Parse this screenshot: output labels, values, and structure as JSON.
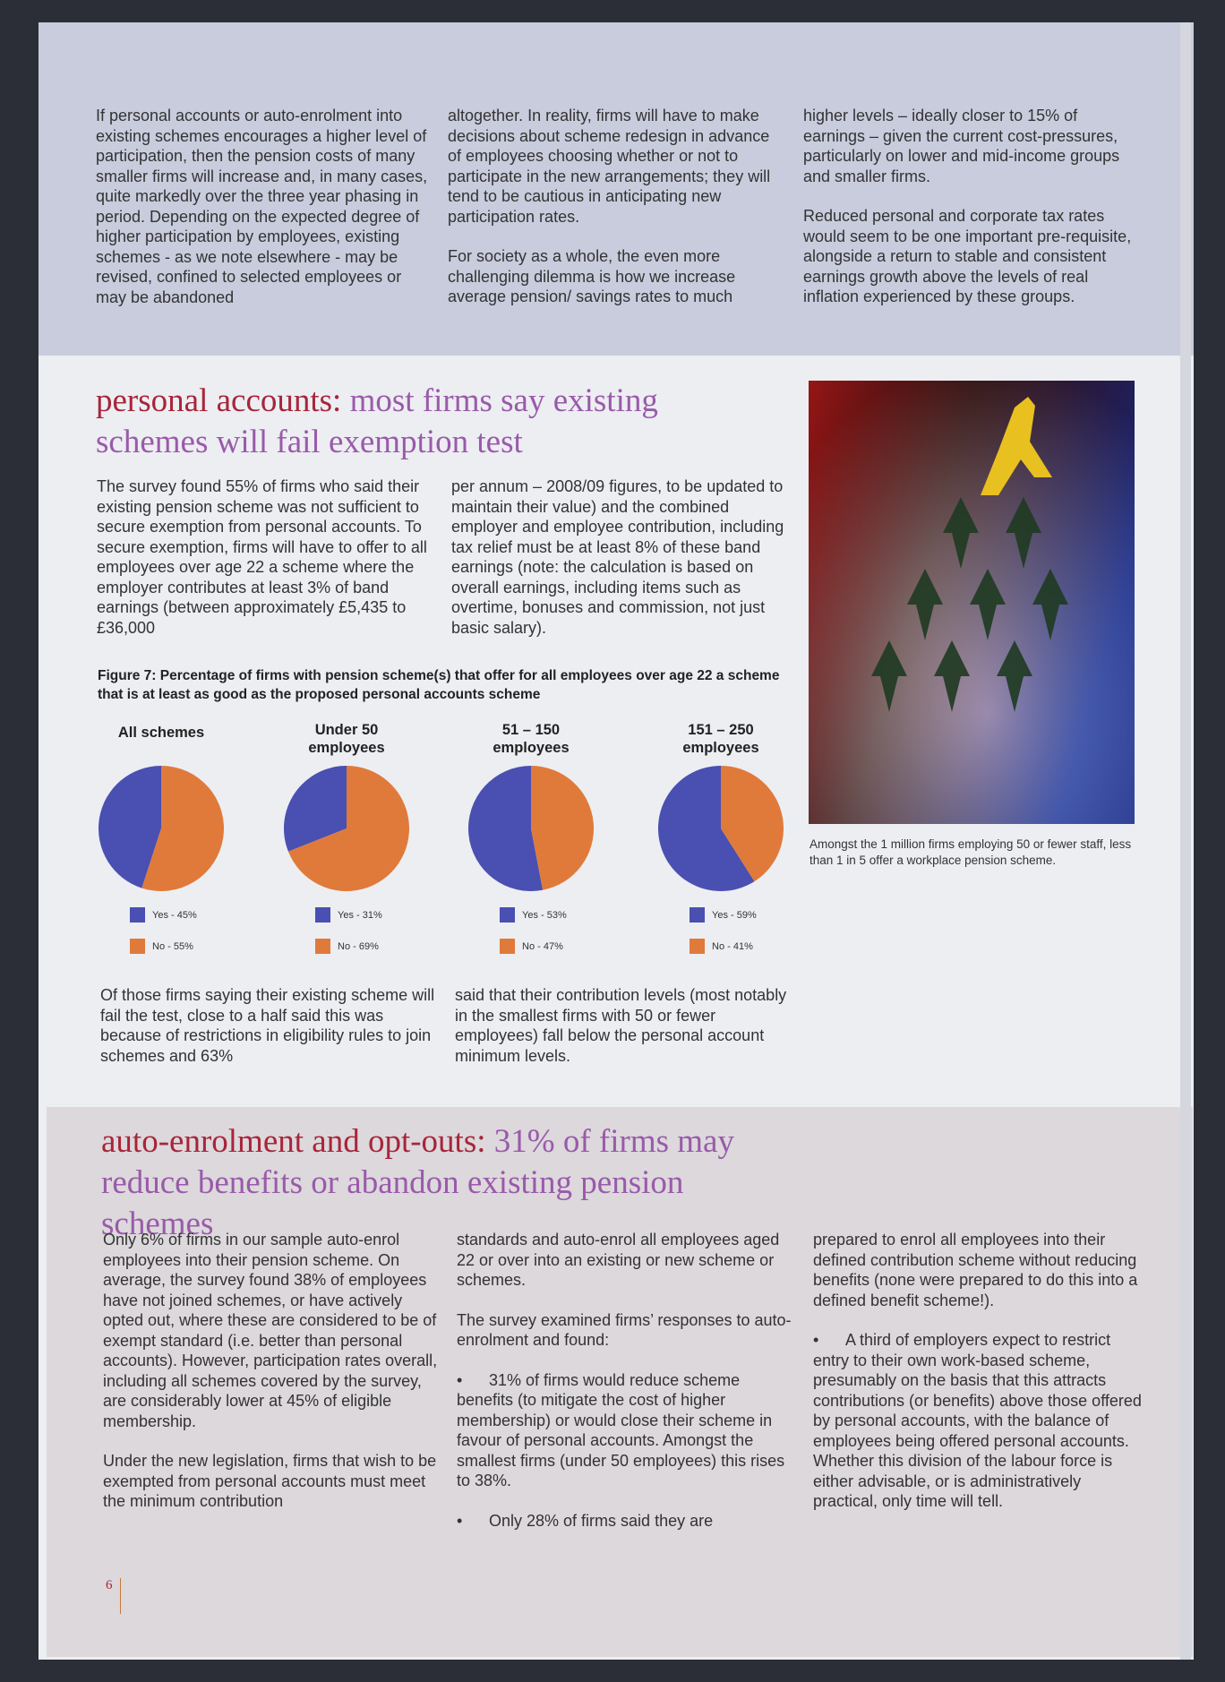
{
  "top": {
    "columns": [
      [
        "If personal accounts or auto-enrolment into existing schemes encourages a higher level of participation, then the pension costs of many smaller firms will increase and, in many cases, quite markedly over the three year phasing in period. Depending on the expected degree of higher participation by employees, existing schemes - as we note elsewhere - may be revised, confined to selected employees or may be abandoned"
      ],
      [
        "altogether.  In reality, firms will have to make decisions about scheme redesign in advance of employees choosing whether or not to participate in the new arrangements; they will tend to be cautious in anticipating new participation rates.",
        "For society as a whole, the even more challenging dilemma is how we increase average pension/ savings rates to much"
      ],
      [
        "higher levels – ideally closer to 15% of earnings – given the current cost-pressures, particularly on lower and mid-income groups and smaller firms.",
        "Reduced personal and corporate tax rates would seem to be one important pre-requisite, alongside a return to stable and consistent earnings growth above the levels of real inflation experienced by these groups."
      ]
    ]
  },
  "section1": {
    "heading_lead": "personal accounts:",
    "heading_rest": "most firms say existing schemes will fail exemption test",
    "columns": [
      [
        "The survey found 55% of firms who said their existing pension scheme was not sufficient to secure exemption from personal accounts.  To secure exemption, firms will have to offer to all employees over age 22 a scheme where the employer contributes at least 3% of band earnings (between approximately £5,435 to £36,000"
      ],
      [
        "per annum – 2008/09 figures, to be updated to maintain their value) and the combined employer and employee contribution, including tax relief must be at least 8% of these band earnings (note: the calculation is based on overall earnings, including items such as overtime, bonuses and commission, not just basic salary)."
      ]
    ],
    "figure": {
      "caption": "Figure 7: Percentage of firms with pension scheme(s) that offer for all employees over age 22 a scheme that is at least as good as the proposed personal accounts scheme",
      "pies": [
        {
          "title": "All schemes",
          "slices": [
            {
              "label": "Yes - 45%",
              "value": 45,
              "color": "#4a4fb2"
            },
            {
              "label": "No - 55%",
              "value": 55,
              "color": "#e07a3a"
            }
          ]
        },
        {
          "title": "Under 50 employees",
          "slices": [
            {
              "label": "Yes - 31%",
              "value": 31,
              "color": "#4a4fb2"
            },
            {
              "label": "No - 69%",
              "value": 69,
              "color": "#e07a3a"
            }
          ]
        },
        {
          "title": "51 – 150 employees",
          "slices": [
            {
              "label": "Yes - 53%",
              "value": 53,
              "color": "#4a4fb2"
            },
            {
              "label": "No - 47%",
              "value": 47,
              "color": "#e07a3a"
            }
          ]
        },
        {
          "title": "151 – 250 employees",
          "slices": [
            {
              "label": "Yes - 59%",
              "value": 59,
              "color": "#4a4fb2"
            },
            {
              "label": "No - 41%",
              "value": 41,
              "color": "#e07a3a"
            }
          ]
        }
      ]
    },
    "after_columns": [
      [
        "Of those firms saying their existing scheme will fail the test, close to a half said this was because of restrictions in eligibility rules to join schemes and 63%"
      ],
      [
        "said that their contribution levels (most notably in the smallest firms with 50 or fewer employees) fall below the personal account minimum levels."
      ]
    ],
    "photo_caption": "Amongst the 1 million firms employing 50 or fewer staff, less than 1 in 5 offer a workplace pension scheme."
  },
  "section2": {
    "heading_lead": "auto-enrolment and opt-outs:",
    "heading_rest": "31% of firms may reduce benefits or abandon existing pension schemes",
    "columns": [
      {
        "paragraphs": [
          "Only 6% of firms in our sample auto-enrol employees into their pension scheme. On average, the survey found 38% of employees have not joined schemes, or have actively opted out, where these are considered to be of exempt standard (i.e. better than personal accounts).  However, participation rates overall, including all schemes covered by the survey, are considerably lower at 45% of eligible membership.",
          "Under the new legislation, firms that wish to be exempted from personal accounts must meet the minimum contribution"
        ],
        "bullets": []
      },
      {
        "paragraphs": [
          "standards and auto-enrol all employees aged 22 or over into an existing or new scheme or schemes.",
          "The survey examined firms’ responses to auto-enrolment and found:"
        ],
        "bullets": [
          "31% of firms would reduce scheme benefits (to mitigate the cost of higher membership) or would close their scheme in favour of personal accounts. Amongst the smallest firms (under 50 employees) this rises to 38%.",
          "Only 28% of firms said they are"
        ]
      },
      {
        "paragraphs": [
          "prepared to enrol all employees into their defined contribution scheme without reducing benefits (none were prepared to do this into a defined benefit scheme!)."
        ],
        "bullets": [
          "A third of employers expect to restrict entry to their own work-based scheme, presumably on the basis that this attracts contributions (or benefits) above those offered by personal accounts, with the balance of employees being offered personal accounts.  Whether this division of the labour force is either advisable, or is administratively practical, only time will tell."
        ]
      }
    ]
  },
  "page_number": "6"
}
